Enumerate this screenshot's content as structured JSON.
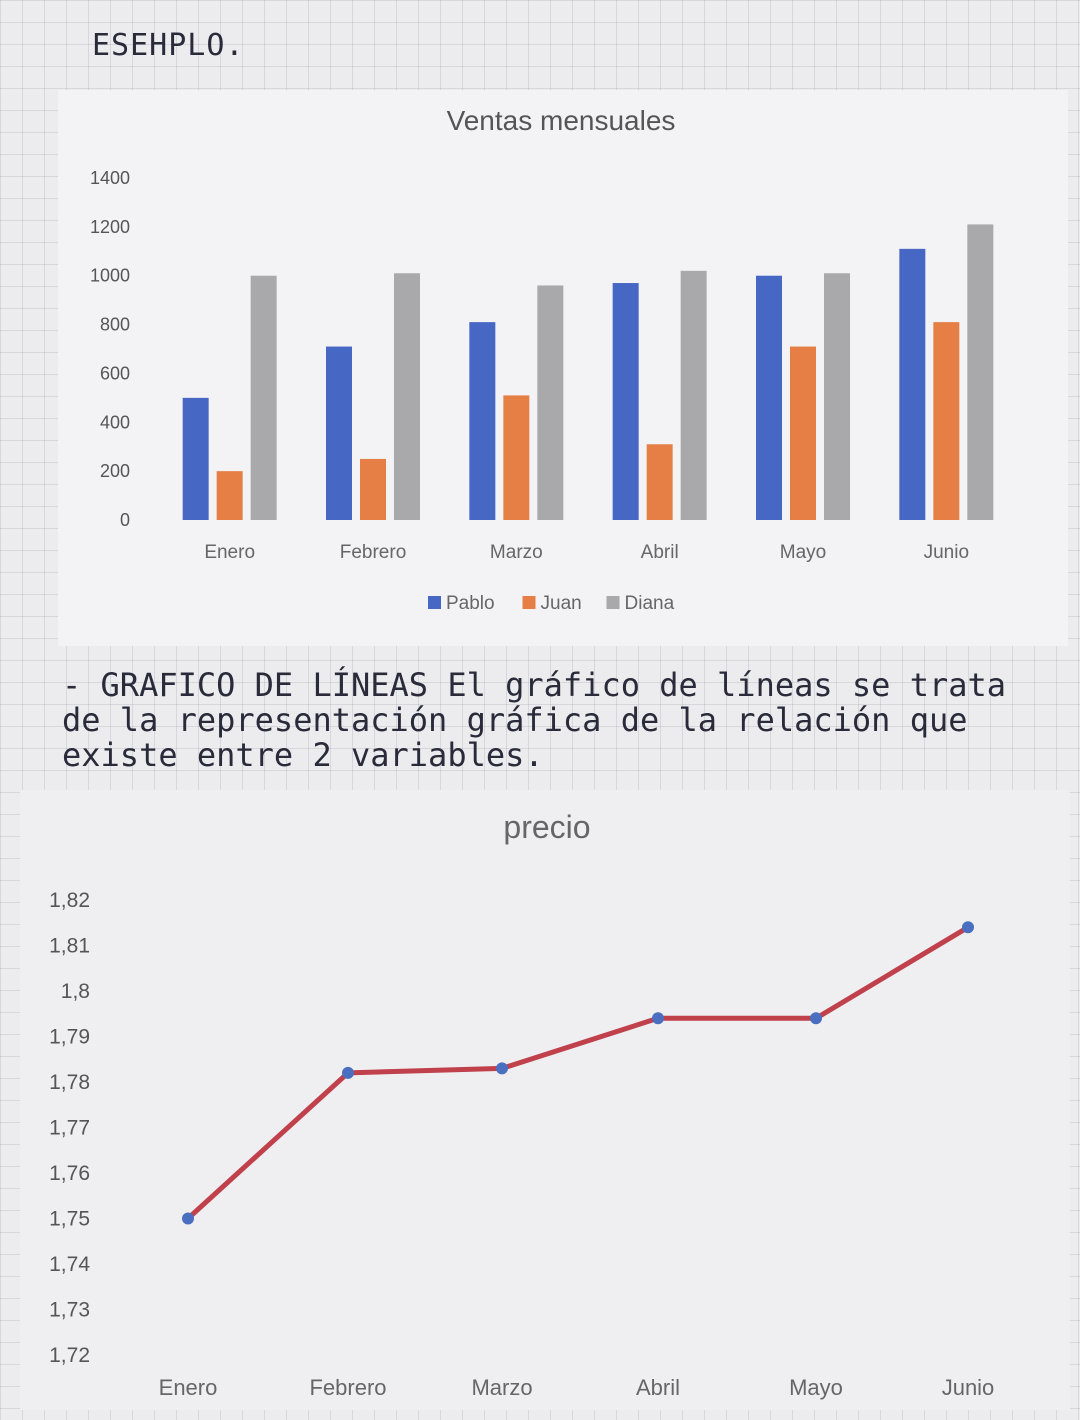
{
  "page": {
    "heading": "ESEHPLO.",
    "note": "- GRAFICO DE LÍNEAS El gráfico de líneas se trata de la representación gráfica de la relación que existe entre 2 variables."
  },
  "chart_data": [
    {
      "type": "bar",
      "title": "Ventas mensuales",
      "categories": [
        "Enero",
        "Febrero",
        "Marzo",
        "Abril",
        "Mayo",
        "Junio"
      ],
      "series": [
        {
          "name": "Pablo",
          "color": "#4767c4",
          "values": [
            500,
            710,
            810,
            970,
            1000,
            1110
          ]
        },
        {
          "name": "Juan",
          "color": "#e57f45",
          "values": [
            200,
            250,
            510,
            310,
            710,
            810
          ]
        },
        {
          "name": "Diana",
          "color": "#a9a9ab",
          "values": [
            1000,
            1010,
            960,
            1020,
            1010,
            1210
          ]
        }
      ],
      "ylim": [
        0,
        1400
      ],
      "yticks": [
        "0",
        "200",
        "400",
        "600",
        "800",
        "1000",
        "1200",
        "1400"
      ],
      "legend_position": "bottom"
    },
    {
      "type": "line",
      "title": "precio",
      "categories": [
        "Enero",
        "Febrero",
        "Marzo",
        "Abril",
        "Mayo",
        "Junio"
      ],
      "series": [
        {
          "color": "#c0404c",
          "marker_color": "#4a6fc0",
          "values": [
            1.75,
            1.782,
            1.783,
            1.794,
            1.794,
            1.814
          ]
        }
      ],
      "ylim": [
        1.72,
        1.82
      ],
      "yticks": [
        "1,72",
        "1,73",
        "1,74",
        "1,75",
        "1,76",
        "1,77",
        "1,78",
        "1,79",
        "1,8",
        "1,81",
        "1,82"
      ]
    }
  ]
}
